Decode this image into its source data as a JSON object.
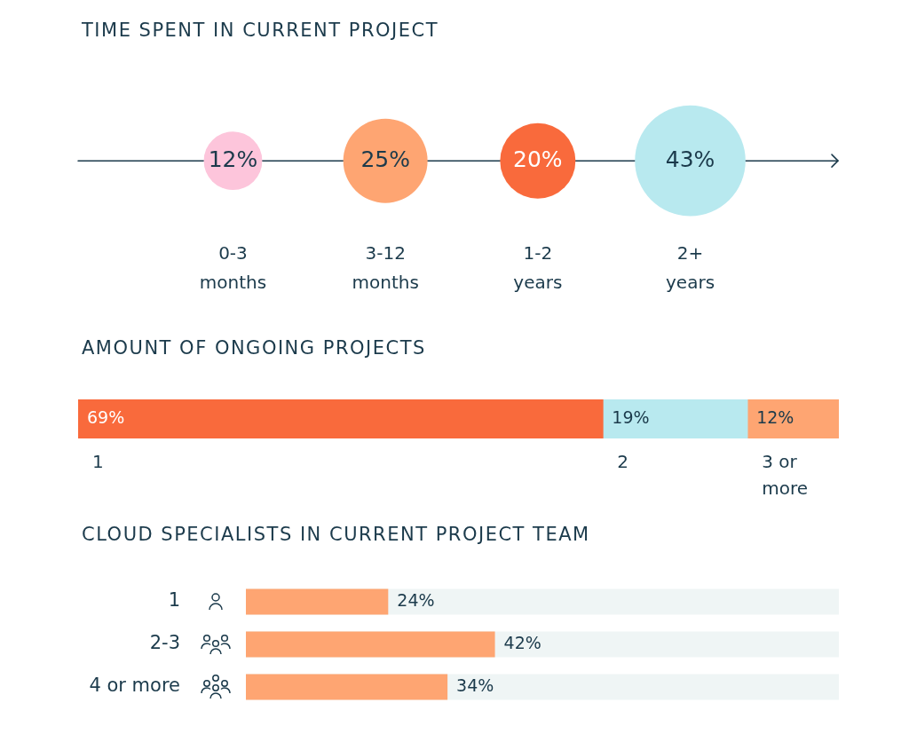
{
  "chart_data": [
    {
      "type": "other",
      "title": "TIME SPENT IN CURRENT PROJECT",
      "categories": [
        "0-3 months",
        "3-12 months",
        "1-2 years",
        "2+ years"
      ],
      "values": [
        12,
        25,
        20,
        43
      ],
      "colors": [
        "#fdc5db",
        "#fea572",
        "#f96a3c",
        "#b8e9ef"
      ],
      "value_labels": [
        "12%",
        "25%",
        "20%",
        "43%"
      ]
    },
    {
      "type": "bar",
      "title": "AMOUNT OF ONGOING PROJECTS",
      "orientation": "horizontal",
      "stacked": true,
      "categories": [
        null
      ],
      "xlim": [
        0,
        100
      ],
      "tick_labels": false,
      "series": [
        {
          "name": "1",
          "color": "#f96a3c",
          "values": [
            69
          ],
          "value_labels": [
            "69%"
          ]
        },
        {
          "name": "2",
          "color": "#b8e9ef",
          "values": [
            19
          ],
          "value_labels": [
            "19%"
          ]
        },
        {
          "name": "3 or more",
          "color": "#fea572",
          "values": [
            12
          ],
          "value_labels": [
            "12%"
          ]
        }
      ]
    },
    {
      "type": "bar",
      "title": "CLOUD SPECIALISTS IN CURRENT PROJECT TEAM",
      "orientation": "horizontal",
      "categories": [
        "1",
        "2-3",
        "4 or more"
      ],
      "values": [
        24,
        42,
        34
      ],
      "color": "#fea572",
      "xlim": [
        0,
        100
      ],
      "tick_labels": "y",
      "value_labels": [
        "24%",
        "42%",
        "34%"
      ]
    }
  ]
}
